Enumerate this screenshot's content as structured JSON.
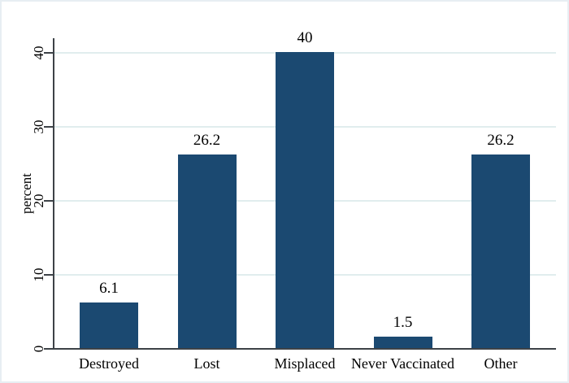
{
  "figure": {
    "background_color": "#ffffff",
    "border_color": "#e7eef3"
  },
  "chart_data": {
    "type": "bar",
    "title": "",
    "categories": [
      "Destroyed",
      "Lost",
      "Misplaced",
      "Never Vaccinated",
      "Other"
    ],
    "values": [
      6.1,
      26.2,
      40,
      1.5,
      26.2
    ],
    "value_labels": [
      "6.1",
      "26.2",
      "40",
      "1.5",
      "26.2"
    ],
    "xlabel": "",
    "ylabel": "percent",
    "ylim": [
      0,
      40
    ],
    "yticks": [
      0,
      10,
      20,
      30,
      40
    ],
    "grid": true,
    "legend_position": "none",
    "bar_color": "#1b4971",
    "grid_color": "#e1edee",
    "axis_color": "#3d4247",
    "text_color": "#000000"
  }
}
